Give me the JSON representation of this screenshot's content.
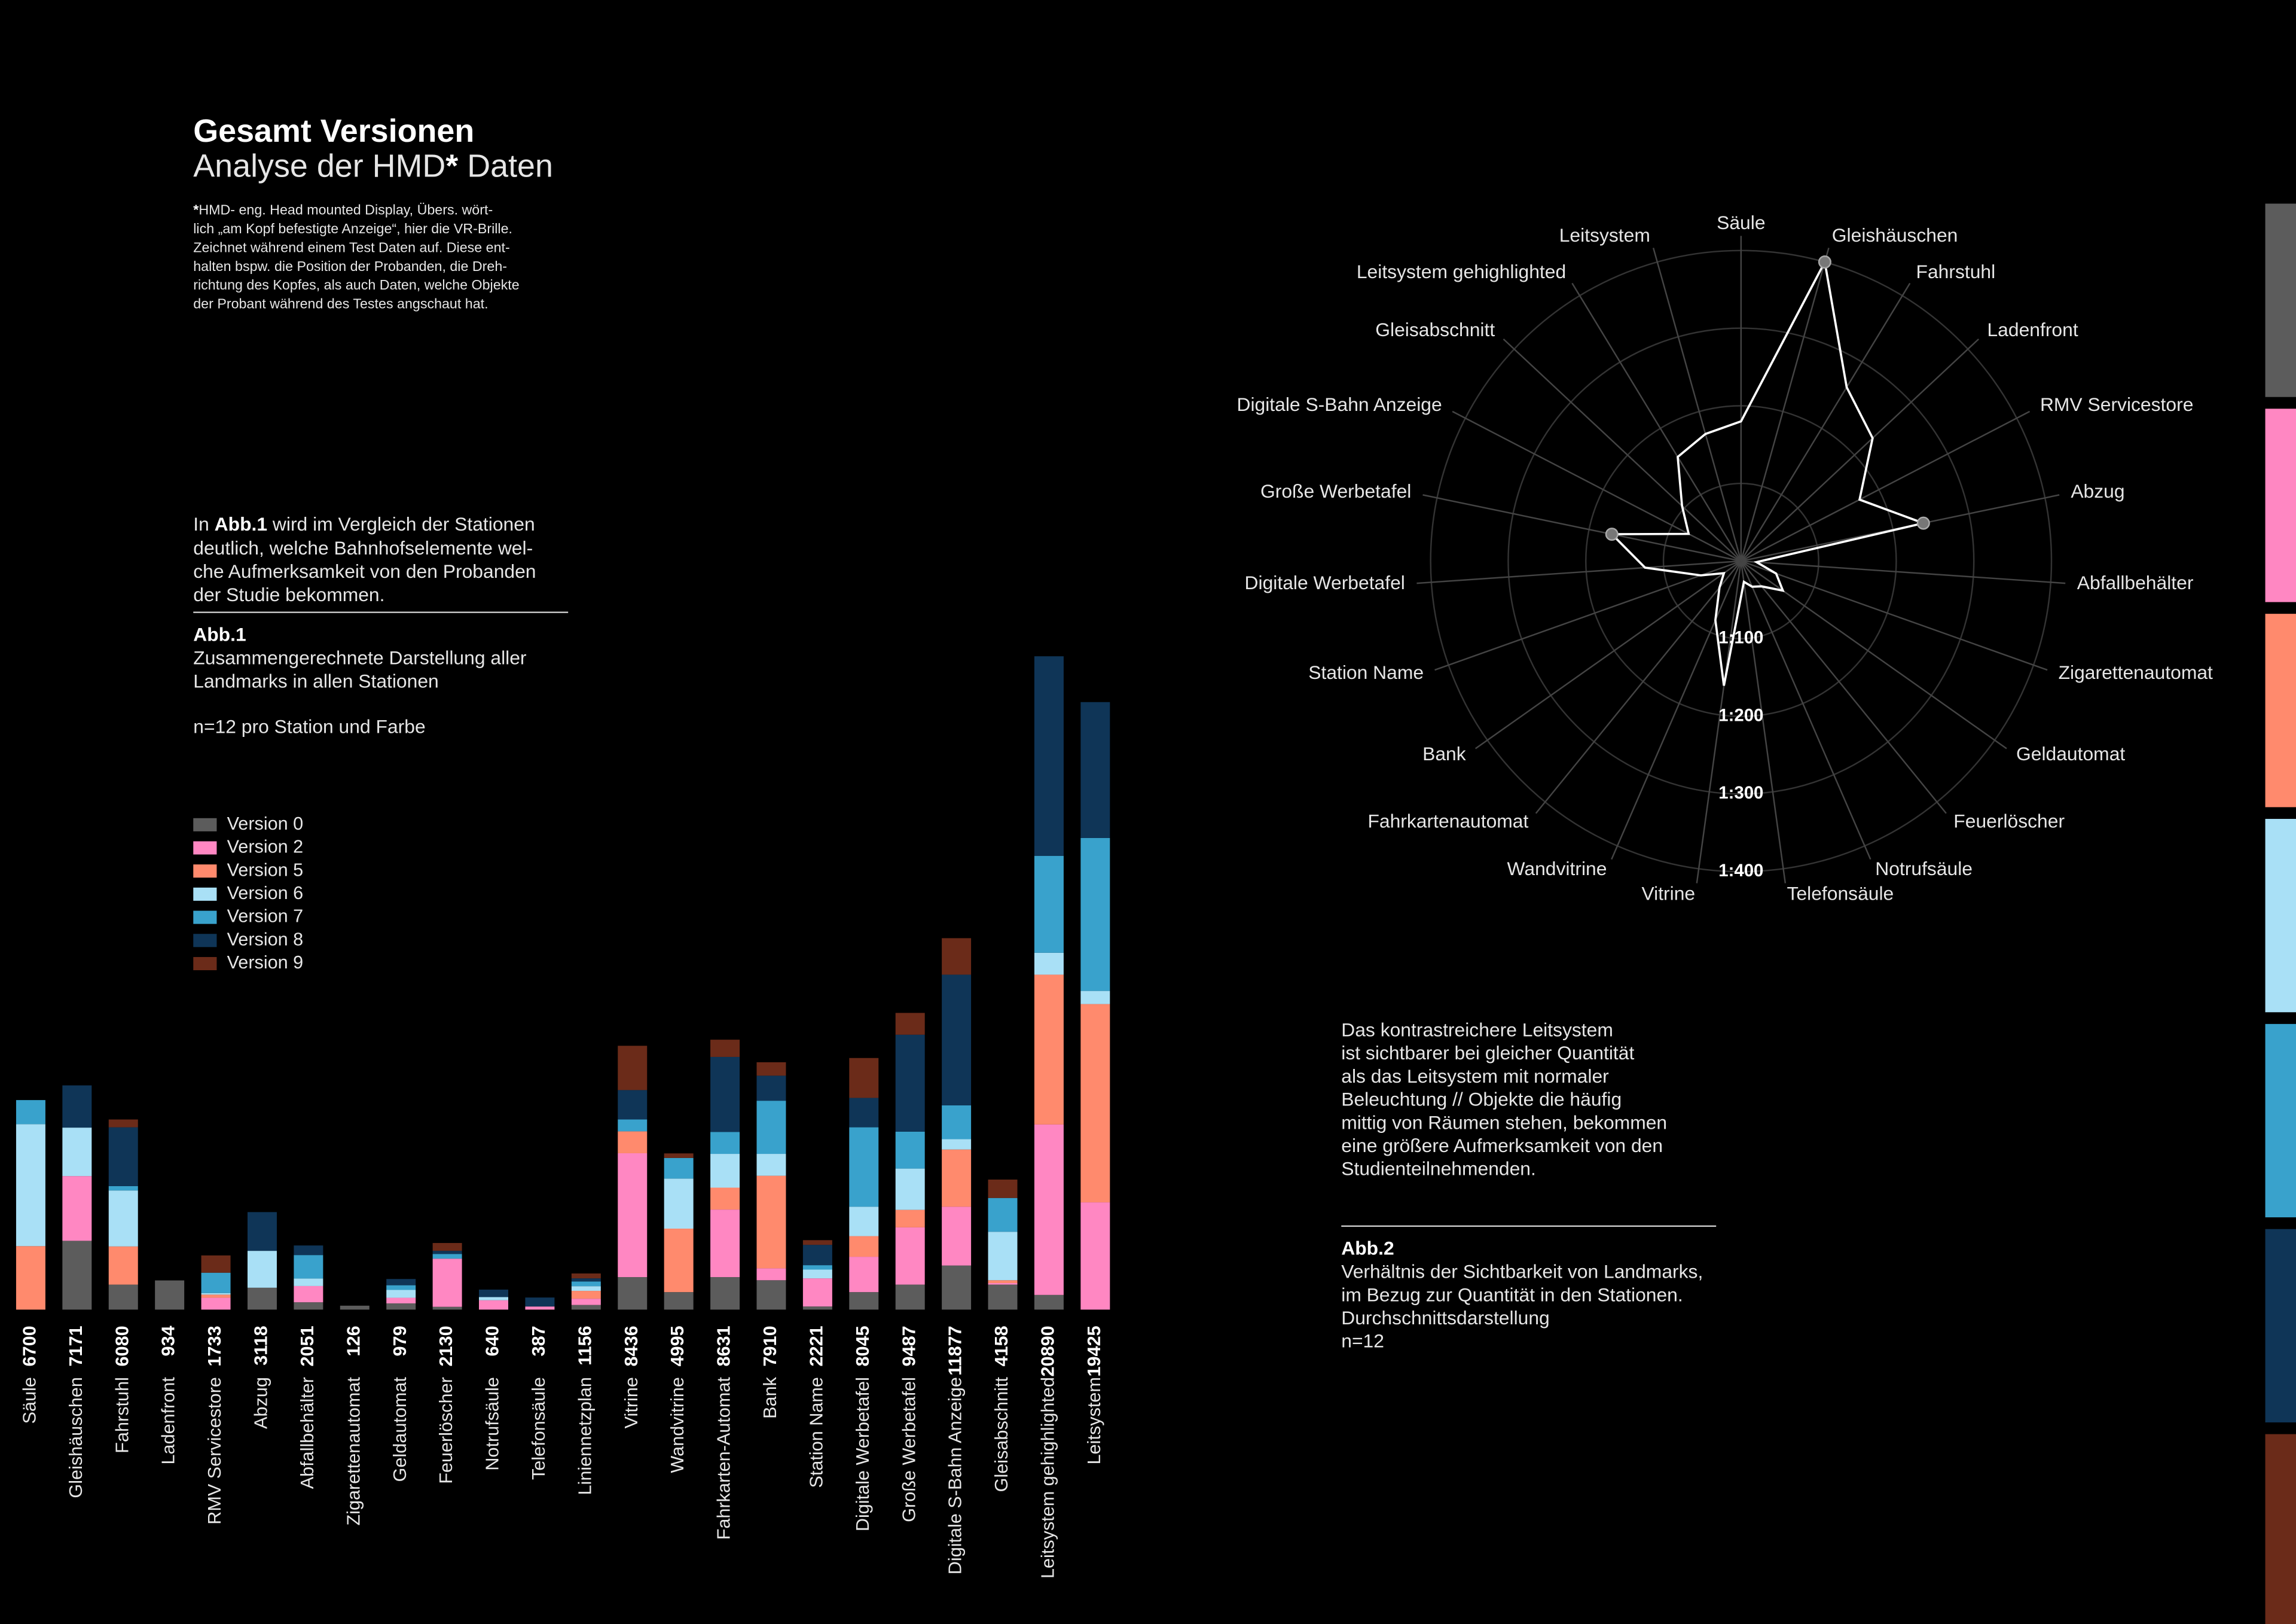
{
  "header": {
    "title": "Gesamt Versionen",
    "subtitle": [
      "Analyse der HMD",
      "*",
      " Daten"
    ],
    "footnote": [
      "*",
      "HMD- eng. Head mounted Display, Übers. wört-",
      "lich „am Kopf befestigte Anzeige“, hier die VR-Brille.",
      "Zeichnet während einem Test Daten auf. Diese ent-",
      "halten bspw. die Position der Probanden, die Dreh-",
      "richtung des Kopfes, als auch Daten, welche Objekte",
      "der Probant während des Testes angschaut hat."
    ]
  },
  "intro": {
    "first": [
      "In ",
      "Abb.1",
      " wird im Vergleich der Stationen"
    ],
    "lines": [
      "deutlich, welche Bahnhofselemente wel-",
      "che Aufmerksamkeit von den Probanden",
      "der Studie bekommen."
    ]
  },
  "abb1": {
    "label": "Abb.1",
    "lines": [
      "Zusammengerechnete Darstellung aller",
      "Landmarks in allen Stationen"
    ],
    "n": "n=12 pro Station und Farbe"
  },
  "note": {
    "lines": [
      "Das kontrastreichere Leitsystem",
      "ist sichtbarer bei gleicher Quantität",
      "als das Leitsystem mit normaler",
      "Beleuchtung // Objekte die häufig",
      "mittig von Räumen stehen, bekommen",
      "eine größere Aufmerksamkeit von den",
      "Studienteilnehmenden."
    ]
  },
  "abb2": {
    "label": "Abb.2",
    "lines": [
      "Verhältnis der Sichtbarkeit von Landmarks,",
      "im Bezug zur Quantität in den Stationen.",
      "Durchschnittsdarstellung",
      "n=12"
    ]
  },
  "chart_data": [
    {
      "type": "bar",
      "stacked": true,
      "categories": [
        "Säule",
        "Gleishäuschen",
        "Fahrstuhl",
        "Ladenfront",
        "RMV Servicestore",
        "Abzug",
        "Abfallbehälter",
        "Zigarettenautomat",
        "Geldautomat",
        "Feuerlöscher",
        "Notrufsäule",
        "Telefonsäule",
        "Liniennetzplan",
        "Vitrine",
        "Wandvitrine",
        "Fahrkarten-Automat",
        "Bank",
        "Station Name",
        "Digitale Werbetafel",
        "Große Werbetafel",
        "Digitale S-Bahn Anzeige",
        "Gleisabschnitt",
        "Leitsystem gehighlighted",
        "Leitsystem"
      ],
      "totals": [
        6700,
        7171,
        6080,
        934,
        1733,
        3118,
        2051,
        126,
        979,
        2130,
        640,
        387,
        1156,
        8436,
        4995,
        8631,
        7910,
        2221,
        8045,
        9487,
        11877,
        4158,
        20890,
        19425
      ],
      "series": [
        {
          "name": "Version 0",
          "color": "#5c5c5c",
          "values": [
            0,
            2200,
            800,
            934,
            0,
            700,
            235,
            126,
            200,
            90,
            0,
            0,
            150,
            1040,
            560,
            1040,
            940,
            100,
            560,
            800,
            1410,
            800,
            470,
            0
          ]
        },
        {
          "name": "Version 2",
          "color": "#ff87c2",
          "values": [
            0,
            2070,
            0,
            0,
            380,
            0,
            520,
            0,
            180,
            1540,
            300,
            100,
            200,
            3960,
            0,
            2160,
            380,
            900,
            1130,
            1830,
            1880,
            50,
            5450,
            3430
          ]
        },
        {
          "name": "Version 5",
          "color": "#ff8a6d",
          "values": [
            2030,
            0,
            1220,
            0,
            100,
            0,
            0,
            0,
            0,
            0,
            0,
            0,
            250,
            700,
            2030,
            700,
            2960,
            0,
            660,
            560,
            1830,
            90,
            4790,
            6340
          ]
        },
        {
          "name": "Version 6",
          "color": "#a9e0f6",
          "values": [
            3900,
            1550,
            1790,
            0,
            50,
            1180,
            240,
            0,
            250,
            0,
            100,
            0,
            150,
            0,
            1600,
            1080,
            700,
            280,
            940,
            1320,
            330,
            1550,
            700,
            420
          ]
        },
        {
          "name": "Version 7",
          "color": "#39a2cc",
          "values": [
            770,
            0,
            140,
            0,
            650,
            0,
            750,
            0,
            150,
            150,
            0,
            0,
            150,
            380,
            660,
            700,
            1700,
            141,
            2540,
            1180,
            1080,
            1080,
            3100,
            4890
          ]
        },
        {
          "name": "Version 8",
          "color": "#0f3557",
          "values": [
            0,
            1350,
            1880,
            0,
            0,
            1238,
            306,
            0,
            199,
            100,
            240,
            287,
            100,
            940,
            0,
            2400,
            800,
            650,
            940,
            3100,
            4180,
            0,
            6380,
            4345
          ]
        },
        {
          "name": "Version 9",
          "color": "#6b2b19",
          "values": [
            0,
            0,
            250,
            0,
            553,
            0,
            0,
            0,
            0,
            250,
            0,
            0,
            156,
            1416,
            145,
            551,
            430,
            150,
            1275,
            697,
            1167,
            588,
            0,
            0
          ]
        }
      ]
    },
    {
      "type": "radar",
      "color": "#ffffff",
      "categories": [
        "Säule",
        "Gleishäuschen",
        "Fahrstuhl",
        "Ladenfront",
        "RMV Servicestore",
        "Abzug",
        "Abfallbehälter",
        "Zigarettenautomat",
        "Geldautomat",
        "Feuerlöscher",
        "Notrufsäule",
        "Telefonsäule",
        "Vitrine",
        "Wandvitrine",
        "Fahrkartenautomat",
        "Bank",
        "Station Name",
        "Digitale Werbetafel",
        "Große Werbetafel",
        "Digitale S-Bahn Anzeige",
        "Gleisabschnitt",
        "Leitsystem gehighlighted",
        "Leitsystem"
      ],
      "values": [
        180,
        400,
        262,
        232,
        172,
        240,
        20,
        48,
        66,
        42,
        36,
        27,
        162,
        83,
        44,
        27,
        55,
        124,
        170,
        76,
        104,
        157,
        170
      ],
      "highlighted": [
        "Gleishäuschen",
        "Abzug",
        "Große Werbetafel"
      ],
      "rlim": [
        0,
        400
      ],
      "rticks": [
        {
          "value": 100,
          "label": "1:100"
        },
        {
          "value": 200,
          "label": "1:200"
        },
        {
          "value": 300,
          "label": "1:300"
        },
        {
          "value": 400,
          "label": "1:400"
        }
      ]
    }
  ]
}
